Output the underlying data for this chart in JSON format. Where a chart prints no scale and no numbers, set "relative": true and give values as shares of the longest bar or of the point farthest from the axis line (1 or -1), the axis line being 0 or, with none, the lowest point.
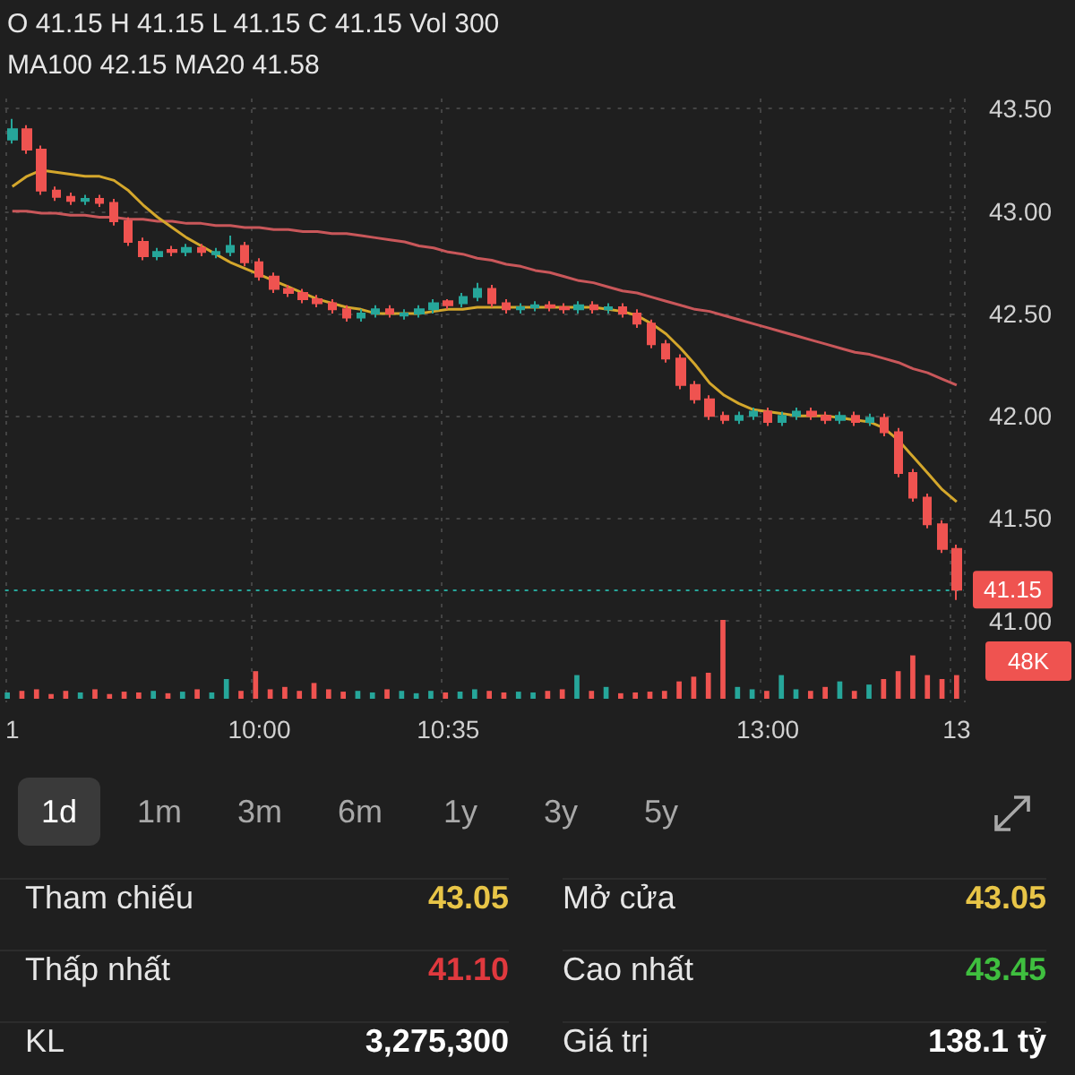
{
  "chart_data": [
    {
      "type": "candlestick",
      "annotations": [
        "O 41.15 H 41.15 L 41.15 C 41.15 Vol 300",
        "MA100 42.15 MA20 41.58"
      ],
      "categories": [
        "1",
        null,
        null,
        null,
        null,
        null,
        null,
        null,
        null,
        null,
        null,
        null,
        null,
        null,
        null,
        null,
        null,
        "10:00",
        null,
        null,
        null,
        null,
        null,
        null,
        null,
        null,
        null,
        null,
        null,
        null,
        "10:35",
        null,
        null,
        null,
        null,
        null,
        null,
        null,
        null,
        null,
        null,
        null,
        null,
        null,
        null,
        null,
        null,
        null,
        null,
        null,
        null,
        null,
        "13:00",
        null,
        null,
        null,
        null,
        null,
        null,
        null,
        null,
        null,
        null,
        null,
        null,
        "13"
      ],
      "ohlc": [
        [
          43.35,
          43.45,
          43.33,
          43.4
        ],
        [
          43.4,
          43.42,
          43.28,
          43.3
        ],
        [
          43.3,
          43.32,
          43.08,
          43.1
        ],
        [
          43.1,
          43.12,
          43.05,
          43.07
        ],
        [
          43.07,
          43.09,
          43.03,
          43.05
        ],
        [
          43.05,
          43.08,
          43.03,
          43.06
        ],
        [
          43.06,
          43.08,
          43.02,
          43.04
        ],
        [
          43.04,
          43.06,
          42.93,
          42.95
        ],
        [
          42.95,
          42.97,
          42.83,
          42.85
        ],
        [
          42.85,
          42.87,
          42.76,
          42.78
        ],
        [
          42.78,
          42.82,
          42.76,
          42.8
        ],
        [
          42.81,
          42.83,
          42.78,
          42.8
        ],
        [
          42.8,
          42.84,
          42.78,
          42.82
        ],
        [
          42.82,
          42.84,
          42.78,
          42.8
        ],
        [
          42.79,
          42.82,
          42.77,
          42.8
        ],
        [
          42.8,
          42.88,
          42.78,
          42.83
        ],
        [
          42.83,
          42.85,
          42.73,
          42.75
        ],
        [
          42.75,
          42.77,
          42.66,
          42.68
        ],
        [
          42.68,
          42.7,
          42.6,
          42.62
        ],
        [
          42.62,
          42.64,
          42.58,
          42.6
        ],
        [
          42.6,
          42.62,
          42.55,
          42.57
        ],
        [
          42.57,
          42.59,
          42.53,
          42.55
        ],
        [
          42.55,
          42.57,
          42.5,
          42.52
        ],
        [
          42.52,
          42.54,
          42.46,
          42.48
        ],
        [
          42.48,
          42.52,
          42.46,
          42.5
        ],
        [
          42.5,
          42.54,
          42.48,
          42.52
        ],
        [
          42.52,
          42.54,
          42.48,
          42.5
        ],
        [
          42.49,
          42.52,
          42.47,
          42.5
        ],
        [
          42.5,
          42.54,
          42.48,
          42.52
        ],
        [
          42.52,
          42.57,
          42.5,
          42.55
        ],
        [
          42.56,
          42.57,
          42.52,
          42.54
        ],
        [
          42.55,
          42.6,
          42.53,
          42.58
        ],
        [
          42.58,
          42.65,
          42.56,
          42.62
        ],
        [
          42.62,
          42.64,
          42.53,
          42.55
        ],
        [
          42.55,
          42.57,
          42.5,
          42.52
        ],
        [
          42.52,
          42.55,
          42.5,
          42.53
        ],
        [
          42.53,
          42.56,
          42.51,
          42.54
        ],
        [
          42.54,
          42.56,
          42.51,
          42.53
        ],
        [
          42.53,
          42.55,
          42.5,
          42.52
        ],
        [
          42.52,
          42.56,
          42.5,
          42.54
        ],
        [
          42.54,
          42.56,
          42.5,
          42.52
        ],
        [
          42.52,
          42.55,
          42.5,
          42.53
        ],
        [
          42.53,
          42.55,
          42.48,
          42.5
        ],
        [
          42.5,
          42.52,
          42.43,
          42.45
        ],
        [
          42.45,
          42.47,
          42.33,
          42.35
        ],
        [
          42.35,
          42.37,
          42.26,
          42.28
        ],
        [
          42.28,
          42.3,
          42.13,
          42.15
        ],
        [
          42.15,
          42.17,
          42.06,
          42.08
        ],
        [
          42.08,
          42.1,
          41.98,
          42.0
        ],
        [
          42.0,
          42.02,
          41.96,
          41.98
        ],
        [
          41.98,
          42.02,
          41.96,
          42.0
        ],
        [
          42.0,
          42.04,
          41.98,
          42.02
        ],
        [
          42.02,
          42.04,
          41.95,
          41.97
        ],
        [
          41.97,
          42.02,
          41.95,
          42.0
        ],
        [
          42.0,
          42.04,
          41.98,
          42.02
        ],
        [
          42.02,
          42.04,
          41.98,
          42.0
        ],
        [
          42.0,
          42.02,
          41.96,
          41.98
        ],
        [
          41.98,
          42.02,
          41.96,
          42.0
        ],
        [
          42.0,
          42.02,
          41.95,
          41.97
        ],
        [
          41.97,
          42.01,
          41.95,
          41.99
        ],
        [
          41.99,
          42.01,
          41.9,
          41.92
        ],
        [
          41.92,
          41.94,
          41.7,
          41.72
        ],
        [
          41.72,
          41.74,
          41.58,
          41.6
        ],
        [
          41.6,
          41.62,
          41.45,
          41.47
        ],
        [
          41.47,
          41.49,
          41.33,
          41.35
        ],
        [
          41.35,
          41.37,
          41.1,
          41.15
        ]
      ],
      "colors": [
        "#26a69a",
        "#ef5350",
        "#ef5350",
        "#ef5350",
        "#ef5350",
        "#26a69a",
        "#ef5350",
        "#ef5350",
        "#ef5350",
        "#ef5350",
        "#26a69a",
        "#ef5350",
        "#26a69a",
        "#ef5350",
        "#26a69a",
        "#26a69a",
        "#ef5350",
        "#ef5350",
        "#ef5350",
        "#ef5350",
        "#ef5350",
        "#ef5350",
        "#ef5350",
        "#ef5350",
        "#26a69a",
        "#26a69a",
        "#ef5350",
        "#26a69a",
        "#26a69a",
        "#26a69a",
        "#ef5350",
        "#26a69a",
        "#26a69a",
        "#ef5350",
        "#ef5350",
        "#26a69a",
        "#26a69a",
        "#ef5350",
        "#ef5350",
        "#26a69a",
        "#ef5350",
        "#26a69a",
        "#ef5350",
        "#ef5350",
        "#ef5350",
        "#ef5350",
        "#ef5350",
        "#ef5350",
        "#ef5350",
        "#ef5350",
        "#26a69a",
        "#26a69a",
        "#ef5350",
        "#26a69a",
        "#26a69a",
        "#ef5350",
        "#ef5350",
        "#26a69a",
        "#ef5350",
        "#26a69a",
        "#ef5350",
        "#ef5350",
        "#ef5350",
        "#ef5350",
        "#ef5350",
        "#ef5350"
      ],
      "series": [
        {
          "type": "line",
          "color": "#c9575a",
          "values": [
            43.0,
            43.0,
            42.99,
            42.99,
            42.98,
            42.98,
            42.97,
            42.97,
            42.96,
            42.96,
            42.95,
            42.95,
            42.94,
            42.94,
            42.93,
            42.93,
            42.92,
            42.92,
            42.91,
            42.91,
            42.9,
            42.9,
            42.89,
            42.89,
            42.88,
            42.87,
            42.86,
            42.85,
            42.83,
            42.82,
            42.8,
            42.79,
            42.77,
            42.76,
            42.74,
            42.73,
            42.71,
            42.7,
            42.68,
            42.66,
            42.65,
            42.63,
            42.61,
            42.6,
            42.58,
            42.56,
            42.54,
            42.52,
            42.51,
            42.49,
            42.47,
            42.45,
            42.43,
            42.41,
            42.39,
            42.37,
            42.35,
            42.33,
            42.31,
            42.3,
            42.28,
            42.26,
            42.23,
            42.21,
            42.18,
            42.15
          ]
        },
        {
          "type": "line",
          "color": "#d4a72c",
          "values": [
            43.12,
            43.17,
            43.2,
            43.19,
            43.18,
            43.17,
            43.17,
            43.15,
            43.1,
            43.03,
            42.97,
            42.92,
            42.87,
            42.83,
            42.79,
            42.75,
            42.72,
            42.69,
            42.66,
            42.63,
            42.6,
            42.57,
            42.55,
            42.53,
            42.52,
            42.5,
            42.5,
            42.5,
            42.5,
            42.51,
            42.52,
            42.52,
            42.53,
            42.53,
            42.53,
            42.53,
            42.53,
            42.53,
            42.53,
            42.53,
            42.53,
            42.52,
            42.51,
            42.49,
            42.45,
            42.4,
            42.33,
            42.25,
            42.16,
            42.1,
            42.06,
            42.03,
            42.02,
            42.01,
            42.0,
            42.0,
            42.0,
            41.99,
            41.98,
            41.97,
            41.94,
            41.88,
            41.8,
            41.72,
            41.64,
            41.58
          ]
        }
      ],
      "ylim": [
        40.6,
        43.55
      ],
      "yticks": [
        {
          "value": 41,
          "label": "41.00"
        },
        {
          "value": 41.5,
          "label": "41.50"
        },
        {
          "value": 42,
          "label": "42.00"
        },
        {
          "value": 42.5,
          "label": "42.50"
        },
        {
          "value": 43,
          "label": "43.00"
        },
        {
          "value": 43.5,
          "label": "43.50"
        }
      ],
      "ref_lines": [
        {
          "axis": "y",
          "value": 41.15,
          "label": "41.15",
          "color": "#26a69a",
          "line_style": "dotted"
        }
      ],
      "grid": true
    },
    {
      "type": "bar",
      "relative": true,
      "tick_labels": false,
      "annotations": [
        "48K"
      ],
      "categories": [
        null,
        null,
        null,
        null,
        null,
        null,
        null,
        null,
        null,
        null,
        null,
        null,
        null,
        null,
        null,
        null,
        null,
        null,
        null,
        null,
        null,
        null,
        null,
        null,
        null,
        null,
        null,
        null,
        null,
        null,
        null,
        null,
        null,
        null,
        null,
        null,
        null,
        null,
        null,
        null,
        null,
        null,
        null,
        null,
        null,
        null,
        null,
        null,
        null,
        null,
        null,
        null,
        null,
        null,
        null,
        null,
        null,
        null,
        null,
        null,
        null,
        null,
        null,
        null,
        null,
        null
      ],
      "values": [
        0.08,
        0.1,
        0.12,
        0.06,
        0.1,
        0.08,
        0.12,
        0.06,
        0.09,
        0.08,
        0.1,
        0.07,
        0.09,
        0.12,
        0.08,
        0.25,
        0.1,
        0.35,
        0.12,
        0.15,
        0.1,
        0.2,
        0.12,
        0.09,
        0.1,
        0.08,
        0.12,
        0.1,
        0.07,
        0.1,
        0.08,
        0.09,
        0.12,
        0.1,
        0.08,
        0.09,
        0.08,
        0.1,
        0.12,
        0.3,
        0.1,
        0.15,
        0.07,
        0.08,
        0.09,
        0.1,
        0.22,
        0.28,
        0.33,
        1.0,
        0.15,
        0.12,
        0.1,
        0.3,
        0.12,
        0.1,
        0.15,
        0.22,
        0.1,
        0.18,
        0.25,
        0.35,
        0.55,
        0.3,
        0.25,
        0.3
      ],
      "colors": [
        "#26a69a",
        "#ef5350",
        "#ef5350",
        "#ef5350",
        "#ef5350",
        "#26a69a",
        "#ef5350",
        "#ef5350",
        "#ef5350",
        "#ef5350",
        "#26a69a",
        "#ef5350",
        "#26a69a",
        "#ef5350",
        "#26a69a",
        "#26a69a",
        "#ef5350",
        "#ef5350",
        "#ef5350",
        "#ef5350",
        "#ef5350",
        "#ef5350",
        "#ef5350",
        "#ef5350",
        "#26a69a",
        "#26a69a",
        "#ef5350",
        "#26a69a",
        "#26a69a",
        "#26a69a",
        "#ef5350",
        "#26a69a",
        "#26a69a",
        "#ef5350",
        "#ef5350",
        "#26a69a",
        "#26a69a",
        "#ef5350",
        "#ef5350",
        "#26a69a",
        "#ef5350",
        "#26a69a",
        "#ef5350",
        "#ef5350",
        "#ef5350",
        "#ef5350",
        "#ef5350",
        "#ef5350",
        "#ef5350",
        "#ef5350",
        "#26a69a",
        "#26a69a",
        "#ef5350",
        "#26a69a",
        "#26a69a",
        "#ef5350",
        "#ef5350",
        "#26a69a",
        "#ef5350",
        "#26a69a",
        "#ef5350",
        "#ef5350",
        "#ef5350",
        "#ef5350",
        "#ef5350",
        "#ef5350"
      ]
    },
    {
      "type": "other",
      "annotations": [
        "1d",
        "1m",
        "3m",
        "6m",
        "1y",
        "3y",
        "5y",
        "Tham chiếu",
        "43.05",
        "Mở cửa",
        "43.05",
        "Thấp nhất",
        "41.10",
        "Cao nhất",
        "43.45",
        "KL",
        "3,275,300",
        "Giá trị",
        "138.1 tỷ"
      ],
      "colors": [
        "#e8c547",
        "#e8c547",
        "#e0393e",
        "#3fbf3f",
        "#ffffff",
        "#ffffff"
      ]
    }
  ]
}
